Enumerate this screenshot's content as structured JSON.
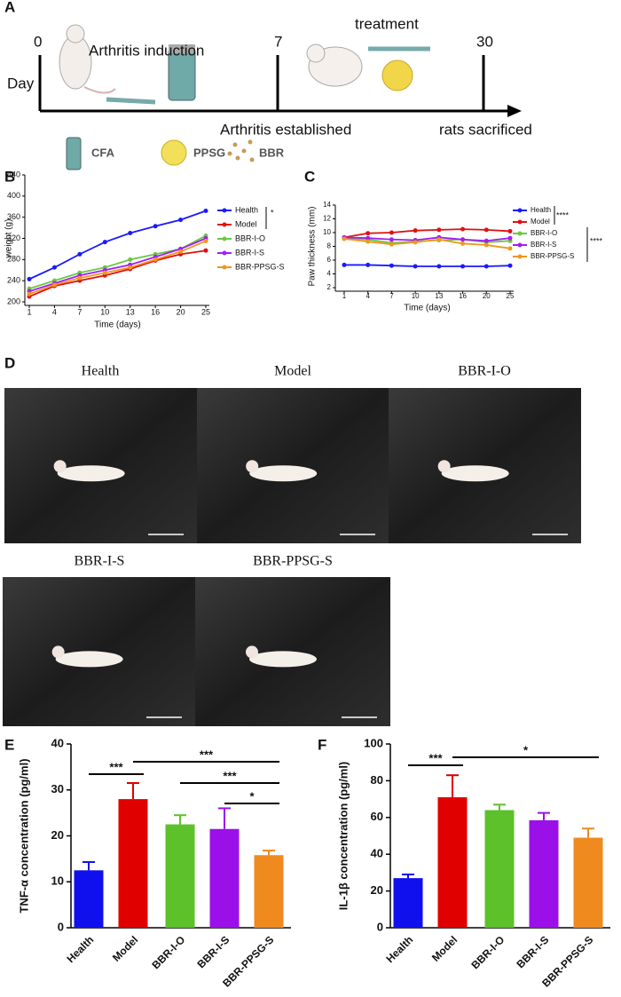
{
  "panel_labels": [
    "A",
    "B",
    "C",
    "D",
    "E",
    "F"
  ],
  "timeline": {
    "day_label": "Day",
    "days": [
      0,
      7,
      30
    ],
    "events": [
      "Arthritis induction",
      "treatment",
      "Arthritis established",
      "rats sacrificed"
    ],
    "legend": [
      "CFA",
      "PPSG",
      "BBR"
    ]
  },
  "photos": [
    "Health",
    "Model",
    "BBR-I-O",
    "BBR-I-S",
    "BBR-PPSG-S"
  ],
  "chart_data": [
    {
      "type": "line",
      "x_label": "Time (days)",
      "y_label": "weight (g)",
      "categories": [
        "1",
        "4",
        "7",
        "10",
        "13",
        "16",
        "20",
        "25"
      ],
      "ylim": [
        200,
        440
      ],
      "yticks": [
        200,
        240,
        280,
        320,
        360,
        400,
        440
      ],
      "annotations": [
        "*"
      ],
      "series": [
        {
          "name": "Health",
          "color": "#1a1aff",
          "values": [
            243,
            265,
            290,
            313,
            330,
            343,
            355,
            372
          ]
        },
        {
          "name": "Model",
          "color": "#e01010",
          "values": [
            210,
            230,
            240,
            250,
            262,
            278,
            290,
            297
          ]
        },
        {
          "name": "BBR-I-O",
          "color": "#6cc644",
          "values": [
            225,
            240,
            255,
            265,
            280,
            290,
            300,
            325
          ]
        },
        {
          "name": "BBR-I-S",
          "color": "#a020f0",
          "values": [
            220,
            235,
            250,
            260,
            270,
            285,
            300,
            320
          ]
        },
        {
          "name": "BBR-PPSG-S",
          "color": "#f0961e",
          "values": [
            215,
            232,
            245,
            255,
            265,
            280,
            295,
            315
          ]
        }
      ]
    },
    {
      "type": "line",
      "x_label": "Time (days)",
      "y_label": "Paw thickness (mm)",
      "categories": [
        "1",
        "4",
        "7",
        "10",
        "13",
        "16",
        "20",
        "25"
      ],
      "ylim": [
        2,
        14
      ],
      "yticks": [
        2,
        4,
        6,
        8,
        10,
        12,
        14
      ],
      "annotations": [
        "****",
        "****"
      ],
      "series": [
        {
          "name": "Health",
          "color": "#1a1aff",
          "values": [
            5.3,
            5.3,
            5.2,
            5.1,
            5.1,
            5.1,
            5.1,
            5.2
          ]
        },
        {
          "name": "Model",
          "color": "#e01010",
          "values": [
            9.3,
            9.9,
            10.0,
            10.3,
            10.4,
            10.5,
            10.4,
            10.2
          ]
        },
        {
          "name": "BBR-I-O",
          "color": "#6cc644",
          "values": [
            9.2,
            9.0,
            8.5,
            8.7,
            8.9,
            9.0,
            8.6,
            8.8
          ]
        },
        {
          "name": "BBR-I-S",
          "color": "#a020f0",
          "values": [
            9.3,
            9.2,
            9.0,
            8.9,
            9.3,
            9.0,
            8.8,
            9.2
          ]
        },
        {
          "name": "BBR-PPSG-S",
          "color": "#f0961e",
          "values": [
            9.1,
            8.7,
            8.3,
            8.6,
            9.0,
            8.4,
            8.2,
            7.7
          ]
        }
      ]
    },
    {
      "type": "bar",
      "y_label": "TNF-α concentration (pg/ml)",
      "categories": [
        "Health",
        "Model",
        "BBR-I-O",
        "BBR-I-S",
        "BBR-PPSG-S"
      ],
      "colors": [
        "#1010ee",
        "#e00000",
        "#5cc12a",
        "#9b10e8",
        "#ef8a1f"
      ],
      "values": [
        12.5,
        28,
        22.5,
        21.5,
        15.8
      ],
      "errors": [
        1.8,
        3.5,
        2,
        4.5,
        1
      ],
      "ylim": [
        0,
        40
      ],
      "yticks": [
        0,
        10,
        20,
        30,
        40
      ],
      "annotations": [
        "***",
        "***",
        "***",
        "*"
      ]
    },
    {
      "type": "bar",
      "y_label": "IL-1β concentration (pg/ml)",
      "categories": [
        "Health",
        "Model",
        "BBR-I-O",
        "BBR-I-S",
        "BBR-PPSG-S"
      ],
      "colors": [
        "#1010ee",
        "#e00000",
        "#5cc12a",
        "#9b10e8",
        "#ef8a1f"
      ],
      "values": [
        27,
        71,
        64,
        58.5,
        49
      ],
      "errors": [
        2,
        12,
        3,
        4,
        5
      ],
      "ylim": [
        0,
        100
      ],
      "yticks": [
        0,
        20,
        40,
        60,
        80,
        100
      ],
      "annotations": [
        "***",
        "*"
      ]
    }
  ]
}
